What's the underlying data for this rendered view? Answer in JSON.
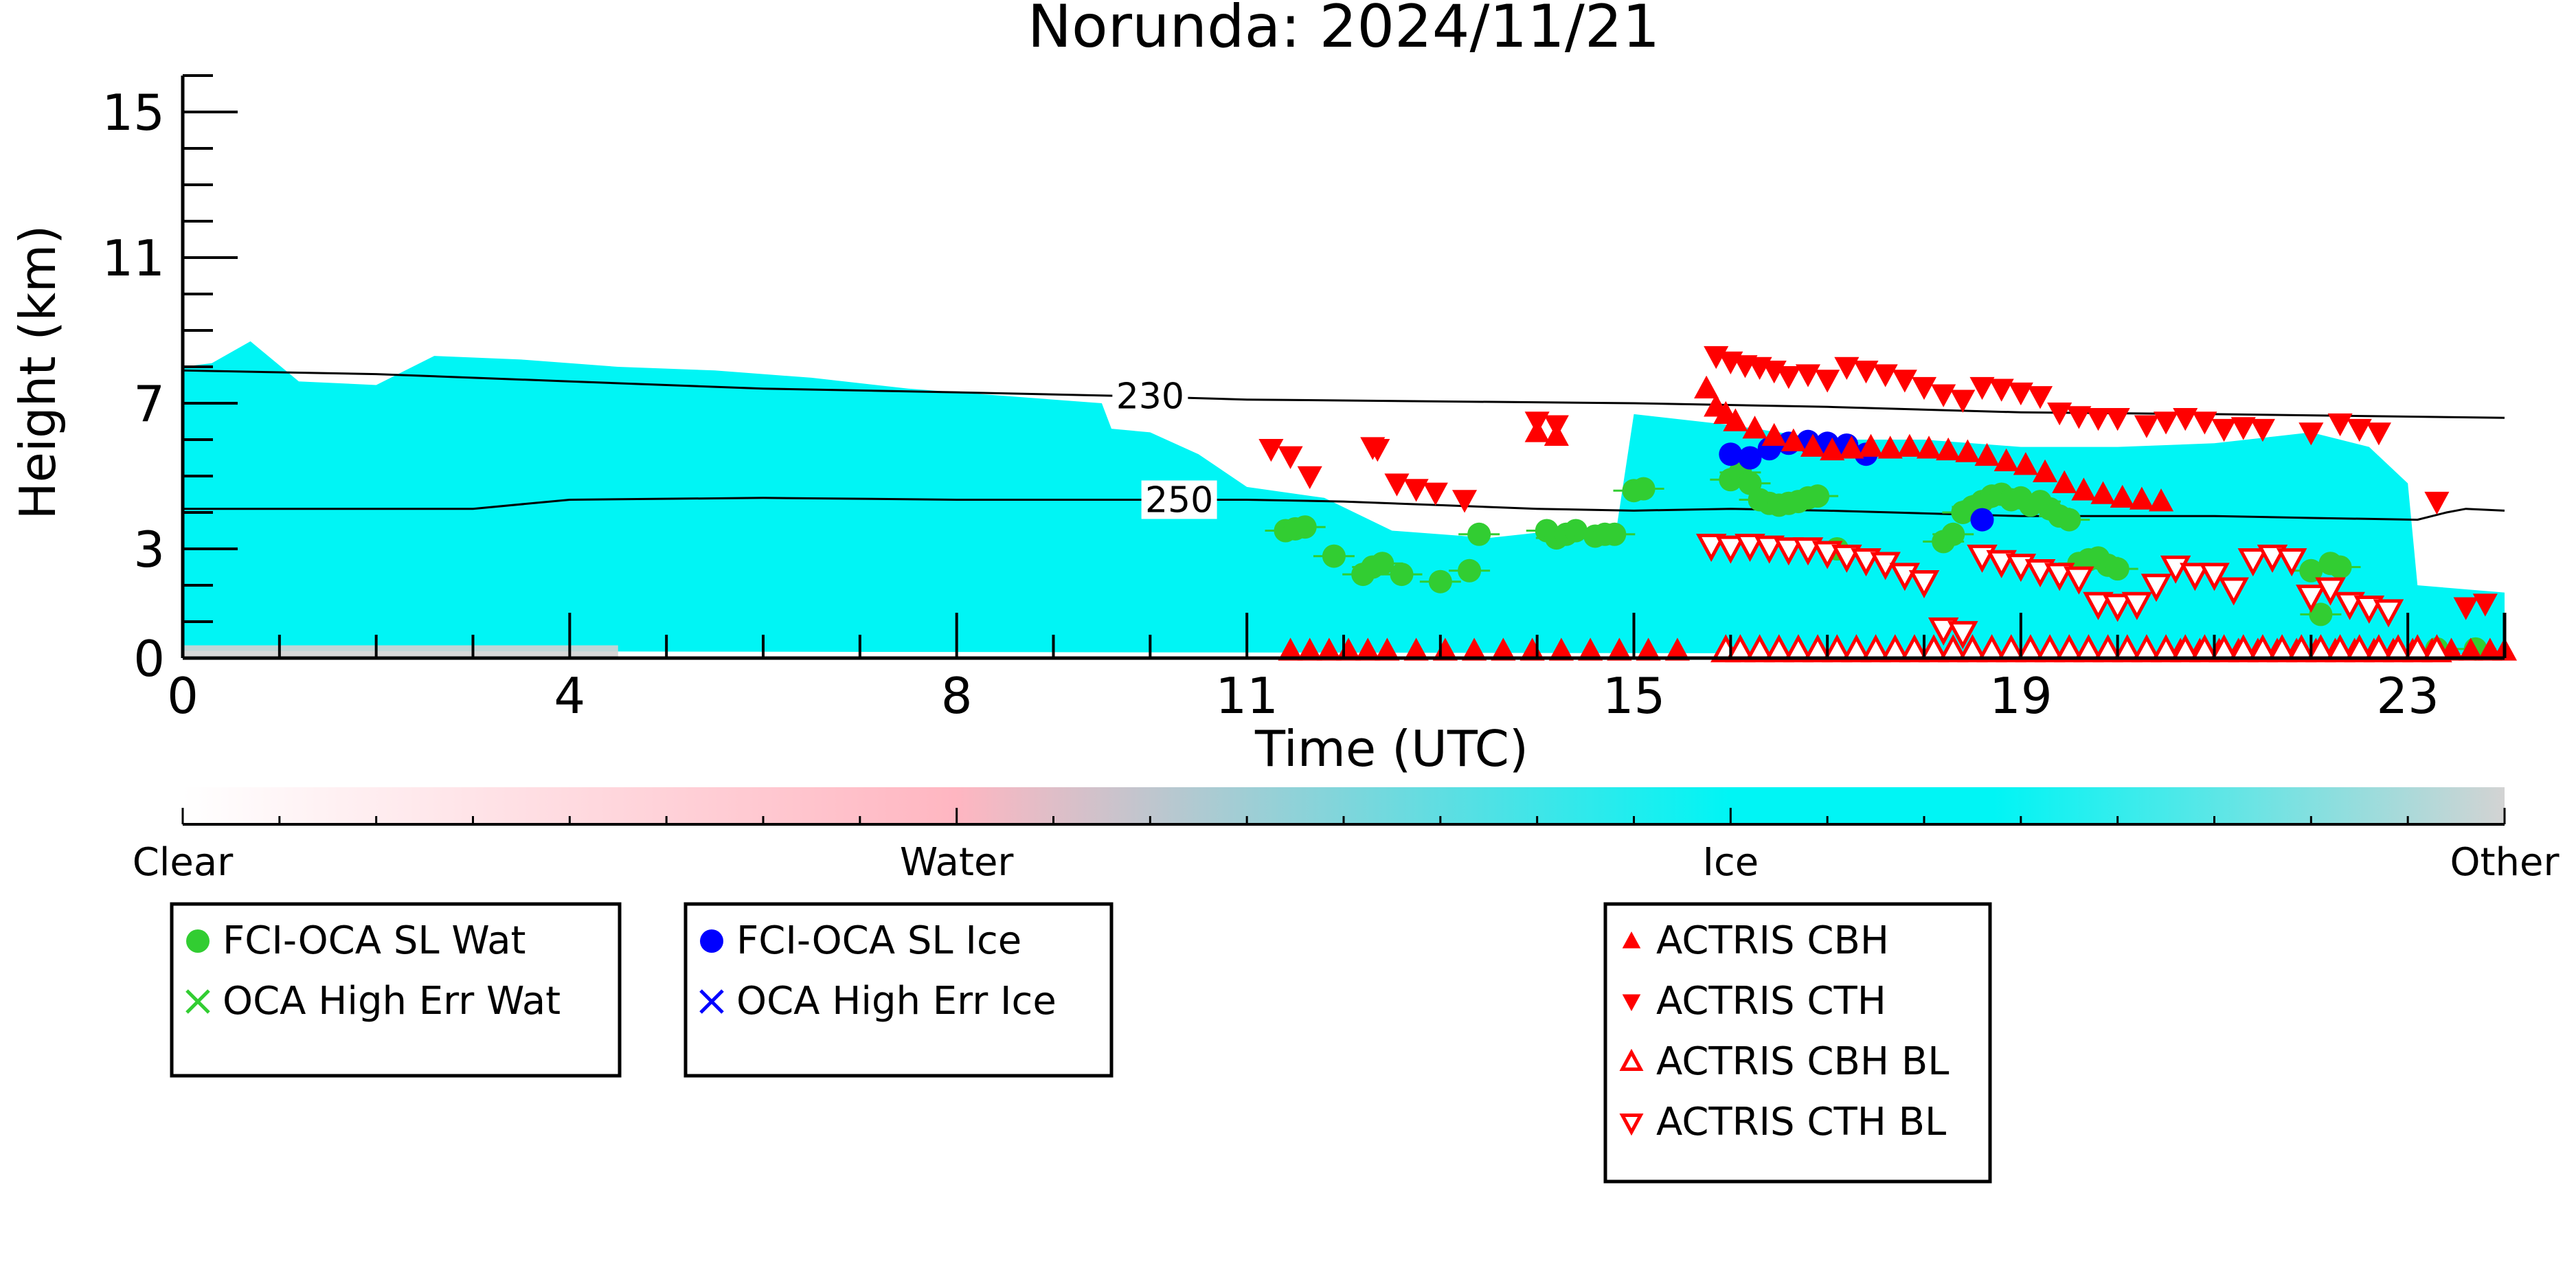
{
  "chart_data": {
    "type": "scatter",
    "title": "Norunda: 2024/11/21",
    "xlabel": "Time (UTC)",
    "ylabel": "Height (km)",
    "xlim": [
      0,
      24
    ],
    "ylim": [
      0,
      16
    ],
    "x_ticks": [
      0,
      4,
      8,
      11,
      15,
      19,
      23
    ],
    "y_ticks": [
      0,
      3,
      7,
      11,
      15
    ],
    "background": {
      "classes": [
        "Clear",
        "Water",
        "Ice",
        "Other"
      ],
      "class_colors": {
        "Clear": "#ffffff",
        "Water": "#ffb6c1",
        "Ice": "#00f5f5",
        "Other": "#d3d3d3"
      },
      "ice_top_km": [
        [
          0,
          8.0
        ],
        [
          0.3,
          8.1
        ],
        [
          0.7,
          8.7
        ],
        [
          1.2,
          7.6
        ],
        [
          2,
          7.5
        ],
        [
          2.6,
          8.3
        ],
        [
          3.5,
          8.2
        ],
        [
          4.5,
          8.0
        ],
        [
          5.5,
          7.9
        ],
        [
          6.5,
          7.7
        ],
        [
          7.5,
          7.4
        ],
        [
          8.5,
          7.2
        ],
        [
          9.5,
          7.0
        ],
        [
          9.6,
          6.3
        ],
        [
          10,
          6.2
        ],
        [
          10.5,
          5.6
        ],
        [
          11,
          4.7
        ],
        [
          11.8,
          4.4
        ],
        [
          12.5,
          3.5
        ],
        [
          13.5,
          3.3
        ],
        [
          14.2,
          3.5
        ],
        [
          14.8,
          3.2
        ],
        [
          15,
          6.7
        ],
        [
          16,
          6.4
        ],
        [
          17,
          6.0
        ],
        [
          18,
          6.0
        ],
        [
          19,
          5.8
        ],
        [
          20,
          5.8
        ],
        [
          21,
          5.9
        ],
        [
          22,
          6.2
        ],
        [
          22.6,
          5.8
        ],
        [
          23,
          4.8
        ],
        [
          23.1,
          2.0
        ],
        [
          24,
          1.8
        ]
      ],
      "ice_bottom_km": [
        [
          0,
          0.2
        ],
        [
          24,
          0.1
        ]
      ]
    },
    "contours": [
      {
        "label": "230",
        "points": [
          [
            0,
            7.9
          ],
          [
            2,
            7.8
          ],
          [
            4,
            7.6
          ],
          [
            6,
            7.4
          ],
          [
            8,
            7.3
          ],
          [
            9.7,
            7.2
          ],
          [
            11,
            7.1
          ],
          [
            13,
            7.05
          ],
          [
            15,
            7.0
          ],
          [
            17,
            6.9
          ],
          [
            19,
            6.75
          ],
          [
            21,
            6.7
          ],
          [
            24,
            6.6
          ]
        ]
      },
      {
        "label": "250",
        "points": [
          [
            0,
            4.1
          ],
          [
            3,
            4.1
          ],
          [
            4,
            4.35
          ],
          [
            6,
            4.4
          ],
          [
            8,
            4.35
          ],
          [
            11,
            4.35
          ],
          [
            12,
            4.3
          ],
          [
            13,
            4.2
          ],
          [
            14,
            4.1
          ],
          [
            15,
            4.05
          ],
          [
            16,
            4.1
          ],
          [
            17,
            4.05
          ],
          [
            19,
            3.9
          ],
          [
            21,
            3.9
          ],
          [
            22,
            3.85
          ],
          [
            23.1,
            3.8
          ],
          [
            23.4,
            4.0
          ],
          [
            23.6,
            4.1
          ],
          [
            24,
            4.05
          ]
        ]
      }
    ],
    "series": [
      {
        "name": "FCI-OCA SL Wat",
        "marker": "circle",
        "color": "#32cd32",
        "x": [
          11.4,
          11.5,
          11.6,
          11.9,
          12.2,
          12.3,
          12.4,
          12.6,
          13.0,
          13.3,
          13.4,
          14.1,
          14.2,
          14.3,
          14.4,
          14.6,
          14.7,
          14.8,
          15.0,
          15.1,
          16.0,
          16.1,
          16.2,
          16.3,
          16.4,
          16.5,
          16.6,
          16.7,
          16.8,
          16.9,
          17.1,
          18.2,
          18.3,
          18.4,
          18.5,
          18.6,
          18.7,
          18.8,
          18.9,
          19.0,
          19.1,
          19.2,
          19.3,
          19.4,
          19.5,
          19.6,
          19.7,
          19.8,
          19.9,
          20.0,
          22.0,
          22.1,
          22.2,
          22.3,
          23.3,
          23.7
        ],
        "y": [
          3.5,
          3.55,
          3.6,
          2.8,
          2.3,
          2.5,
          2.6,
          2.3,
          2.1,
          2.4,
          3.4,
          3.5,
          3.3,
          3.4,
          3.5,
          3.35,
          3.4,
          3.4,
          4.6,
          4.65,
          4.9,
          5.1,
          4.8,
          4.35,
          4.25,
          4.2,
          4.25,
          4.3,
          4.4,
          4.45,
          3.0,
          3.2,
          3.4,
          4.0,
          4.15,
          4.3,
          4.45,
          4.5,
          4.35,
          4.4,
          4.2,
          4.3,
          4.1,
          3.9,
          3.8,
          2.6,
          2.7,
          2.75,
          2.55,
          2.45,
          2.4,
          1.2,
          2.6,
          2.5,
          0.25,
          0.25
        ]
      },
      {
        "name": "OCA High Err Wat",
        "marker": "x",
        "color": "#32cd32",
        "x": [],
        "y": []
      },
      {
        "name": "FCI-OCA SL Ice",
        "marker": "circle",
        "color": "#0000ff",
        "x": [
          16.0,
          16.2,
          16.4,
          16.6,
          16.8,
          17.0,
          17.2,
          17.4,
          18.6
        ],
        "y": [
          5.6,
          5.5,
          5.75,
          5.9,
          5.95,
          5.9,
          5.85,
          5.6,
          3.8
        ]
      },
      {
        "name": "OCA High Err Ice",
        "marker": "x",
        "color": "#0000ff",
        "x": [],
        "y": []
      },
      {
        "name": "ACTRIS CBH",
        "marker": "triangle-up",
        "color": "#ff0000",
        "x": [
          11.45,
          11.65,
          11.85,
          12.05,
          12.25,
          12.45,
          12.75,
          13.05,
          13.35,
          13.65,
          13.95,
          14.25,
          14.55,
          14.85,
          15.15,
          15.45,
          15.75,
          15.85,
          15.95,
          16.05,
          16.25,
          16.45,
          16.65,
          16.85,
          17.05,
          17.25,
          17.45,
          17.65,
          17.85,
          18.05,
          18.25,
          18.45,
          18.65,
          18.85,
          19.05,
          19.25,
          19.45,
          19.65,
          19.85,
          20.05,
          20.25,
          20.45,
          20.65,
          20.85,
          21.05,
          21.25,
          21.45,
          21.65,
          21.85,
          22.05,
          22.25,
          22.45,
          22.65,
          22.85,
          23.05,
          23.25,
          23.45,
          23.65,
          23.85,
          24.0,
          22.5,
          14.0,
          14.2
        ],
        "y": [
          0.2,
          0.2,
          0.2,
          0.2,
          0.2,
          0.2,
          0.2,
          0.2,
          0.2,
          0.2,
          0.2,
          0.2,
          0.2,
          0.2,
          0.2,
          0.2,
          7.4,
          6.9,
          6.7,
          6.5,
          6.3,
          6.1,
          5.95,
          5.8,
          5.7,
          5.75,
          5.8,
          5.75,
          5.8,
          5.75,
          5.7,
          5.65,
          5.55,
          5.4,
          5.3,
          5.1,
          4.8,
          4.6,
          4.5,
          4.4,
          4.35,
          4.3,
          0.2,
          0.2,
          0.2,
          0.2,
          0.2,
          0.2,
          0.2,
          0.2,
          0.2,
          0.2,
          0.2,
          0.2,
          0.2,
          0.2,
          0.2,
          0.2,
          0.2,
          0.2,
          0.2,
          6.2,
          6.1
        ]
      },
      {
        "name": "ACTRIS CTH",
        "marker": "triangle-down",
        "color": "#ff0000",
        "x": [
          11.25,
          11.45,
          11.65,
          12.3,
          12.35,
          12.55,
          12.75,
          12.95,
          13.25,
          14.0,
          14.2,
          15.85,
          16.0,
          16.15,
          16.3,
          16.45,
          16.6,
          16.8,
          17.0,
          17.2,
          17.4,
          17.6,
          17.8,
          18.0,
          18.2,
          18.4,
          18.6,
          18.8,
          19.0,
          19.2,
          19.4,
          19.6,
          19.8,
          20.0,
          20.3,
          20.5,
          20.7,
          20.9,
          21.1,
          21.3,
          21.5,
          22.0,
          22.3,
          22.5,
          22.7,
          23.3,
          23.6,
          23.8
        ],
        "y": [
          5.75,
          5.55,
          5.0,
          5.8,
          5.75,
          4.8,
          4.65,
          4.55,
          4.35,
          6.5,
          6.4,
          8.3,
          8.15,
          8.05,
          8.0,
          7.9,
          7.75,
          7.8,
          7.65,
          8.0,
          7.9,
          7.8,
          7.65,
          7.45,
          7.25,
          7.1,
          7.45,
          7.4,
          7.3,
          7.2,
          6.75,
          6.65,
          6.6,
          6.6,
          6.4,
          6.5,
          6.6,
          6.5,
          6.3,
          6.35,
          6.3,
          6.2,
          6.45,
          6.3,
          6.2,
          4.3,
          1.4,
          1.5
        ]
      },
      {
        "name": "ACTRIS CBH BL",
        "marker": "triangle-up-open",
        "color": "#ff0000",
        "x": [
          15.95,
          16.1,
          16.3,
          16.5,
          16.7,
          16.9,
          17.1,
          17.3,
          17.5,
          17.7,
          17.9,
          18.1,
          18.3,
          18.5,
          18.7,
          18.9,
          19.1,
          19.3,
          19.5,
          19.7,
          19.9,
          20.1,
          20.3,
          20.5,
          20.7,
          20.9,
          21.1,
          21.3,
          21.5,
          21.7,
          21.9,
          22.1,
          22.3,
          22.5,
          22.7,
          22.9,
          23.1,
          23.3
        ],
        "y": [
          0.2,
          0.2,
          0.2,
          0.2,
          0.2,
          0.2,
          0.2,
          0.2,
          0.2,
          0.2,
          0.2,
          0.2,
          0.2,
          0.2,
          0.2,
          0.2,
          0.2,
          0.2,
          0.2,
          0.2,
          0.2,
          0.2,
          0.2,
          0.2,
          0.2,
          0.2,
          0.2,
          0.2,
          0.2,
          0.2,
          0.2,
          0.2,
          0.2,
          0.2,
          0.2,
          0.2,
          0.2,
          0.2
        ]
      },
      {
        "name": "ACTRIS CTH BL",
        "marker": "triangle-down-open",
        "color": "#ff0000",
        "x": [
          15.8,
          16.0,
          16.2,
          16.4,
          16.6,
          16.8,
          17.0,
          17.2,
          17.4,
          17.6,
          17.8,
          18.0,
          18.2,
          18.4,
          18.6,
          18.8,
          19.0,
          19.2,
          19.4,
          19.6,
          19.8,
          20.0,
          20.2,
          20.4,
          20.6,
          20.8,
          21.0,
          21.2,
          21.4,
          21.6,
          21.8,
          22.0,
          22.2,
          22.4,
          22.6,
          22.8
        ],
        "y": [
          3.1,
          3.05,
          3.1,
          3.05,
          3.0,
          3.0,
          2.9,
          2.8,
          2.7,
          2.6,
          2.3,
          2.1,
          0.8,
          0.7,
          2.8,
          2.65,
          2.55,
          2.4,
          2.3,
          2.2,
          1.5,
          1.45,
          1.5,
          2.0,
          2.5,
          2.3,
          2.3,
          1.9,
          2.7,
          2.8,
          2.7,
          1.7,
          1.9,
          1.5,
          1.4,
          1.3
        ]
      }
    ],
    "legend": {
      "groups": [
        {
          "position": "bottom-left",
          "entries": [
            "FCI-OCA SL Wat",
            "OCA High Err Wat"
          ]
        },
        {
          "position": "bottom-center-left",
          "entries": [
            "FCI-OCA SL Ice",
            "OCA High Err Ice"
          ]
        },
        {
          "position": "bottom-center-right",
          "entries": [
            "ACTRIS CBH",
            "ACTRIS CTH",
            "ACTRIS CBH BL",
            "ACTRIS CTH BL"
          ]
        }
      ]
    },
    "colorbar": {
      "labels": [
        "Clear",
        "Water",
        "Ice",
        "Other"
      ],
      "colors": [
        "#ffffff",
        "#ffb6c1",
        "#00f5f5",
        "#d3d3d3"
      ]
    }
  }
}
